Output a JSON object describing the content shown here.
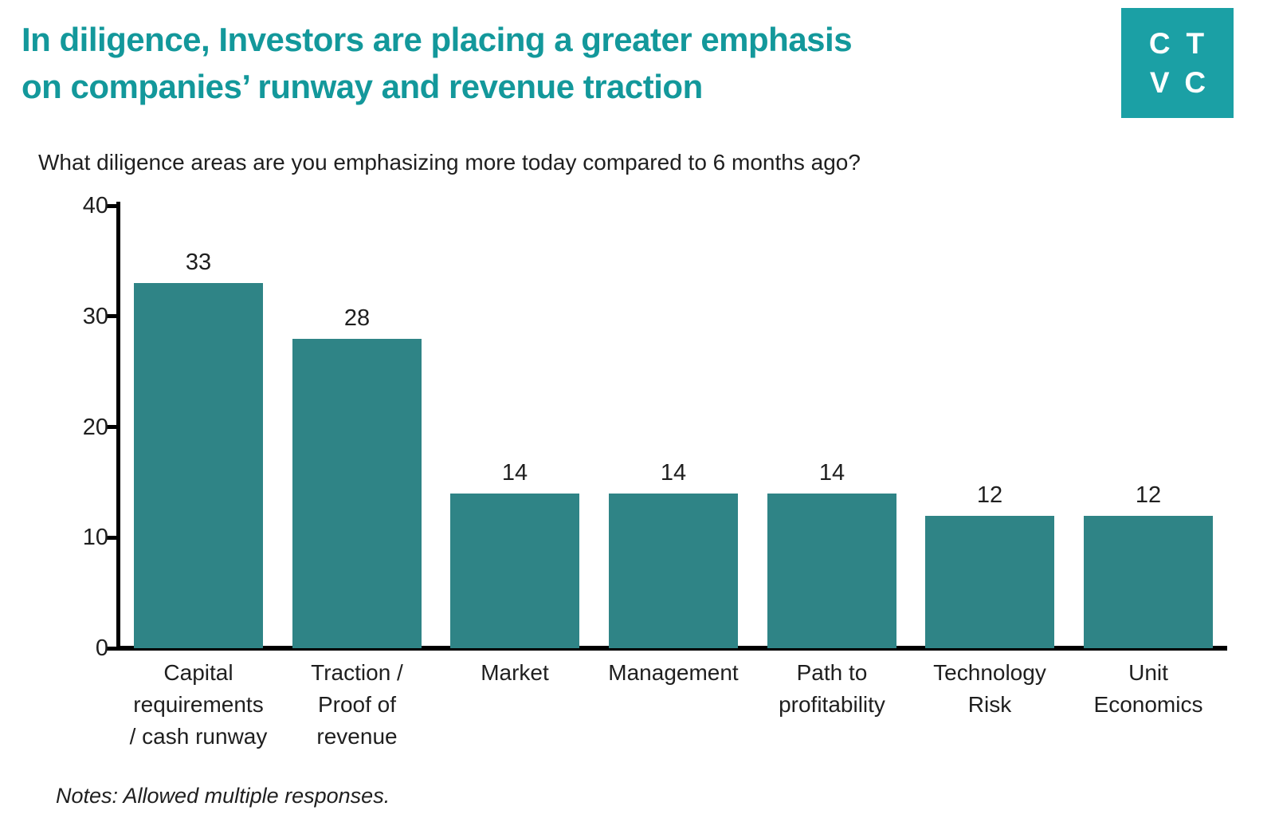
{
  "header": {
    "title_line1": "In diligence, Investors are placing a greater emphasis",
    "title_line2": "on companies’ runway and revenue traction",
    "logo_letters": [
      "C",
      "T",
      "V",
      "C"
    ]
  },
  "question": "What diligence areas are you emphasizing more today compared to 6 months ago?",
  "notes": "Notes: Allowed multiple responses.",
  "colors": {
    "title_teal": "#13989B",
    "logo_teal": "#1BA0A5",
    "bar_teal": "#2F8486",
    "axis_black": "#000000"
  },
  "chart_data": {
    "type": "bar",
    "title": "What diligence areas are you emphasizing more today compared to 6 months ago?",
    "categories": [
      "Capital requirements / cash runway",
      "Traction / Proof of revenue",
      "Market",
      "Management",
      "Path to profitability",
      "Technology Risk",
      "Unit Economics"
    ],
    "category_lines": [
      [
        "Capital",
        "requirements",
        "/ cash runway"
      ],
      [
        "Traction /",
        "Proof of",
        "revenue"
      ],
      [
        "Market"
      ],
      [
        "Management"
      ],
      [
        "Path to",
        "profitability"
      ],
      [
        "Technology",
        "Risk"
      ],
      [
        "Unit",
        "Economics"
      ]
    ],
    "values": [
      33,
      28,
      14,
      14,
      14,
      12,
      12
    ],
    "xlabel": "",
    "ylabel": "",
    "ylim": [
      0,
      40
    ],
    "yticks": [
      0,
      10,
      20,
      30,
      40
    ],
    "grid": false,
    "legend": false,
    "bar_color": "#2F8486"
  }
}
